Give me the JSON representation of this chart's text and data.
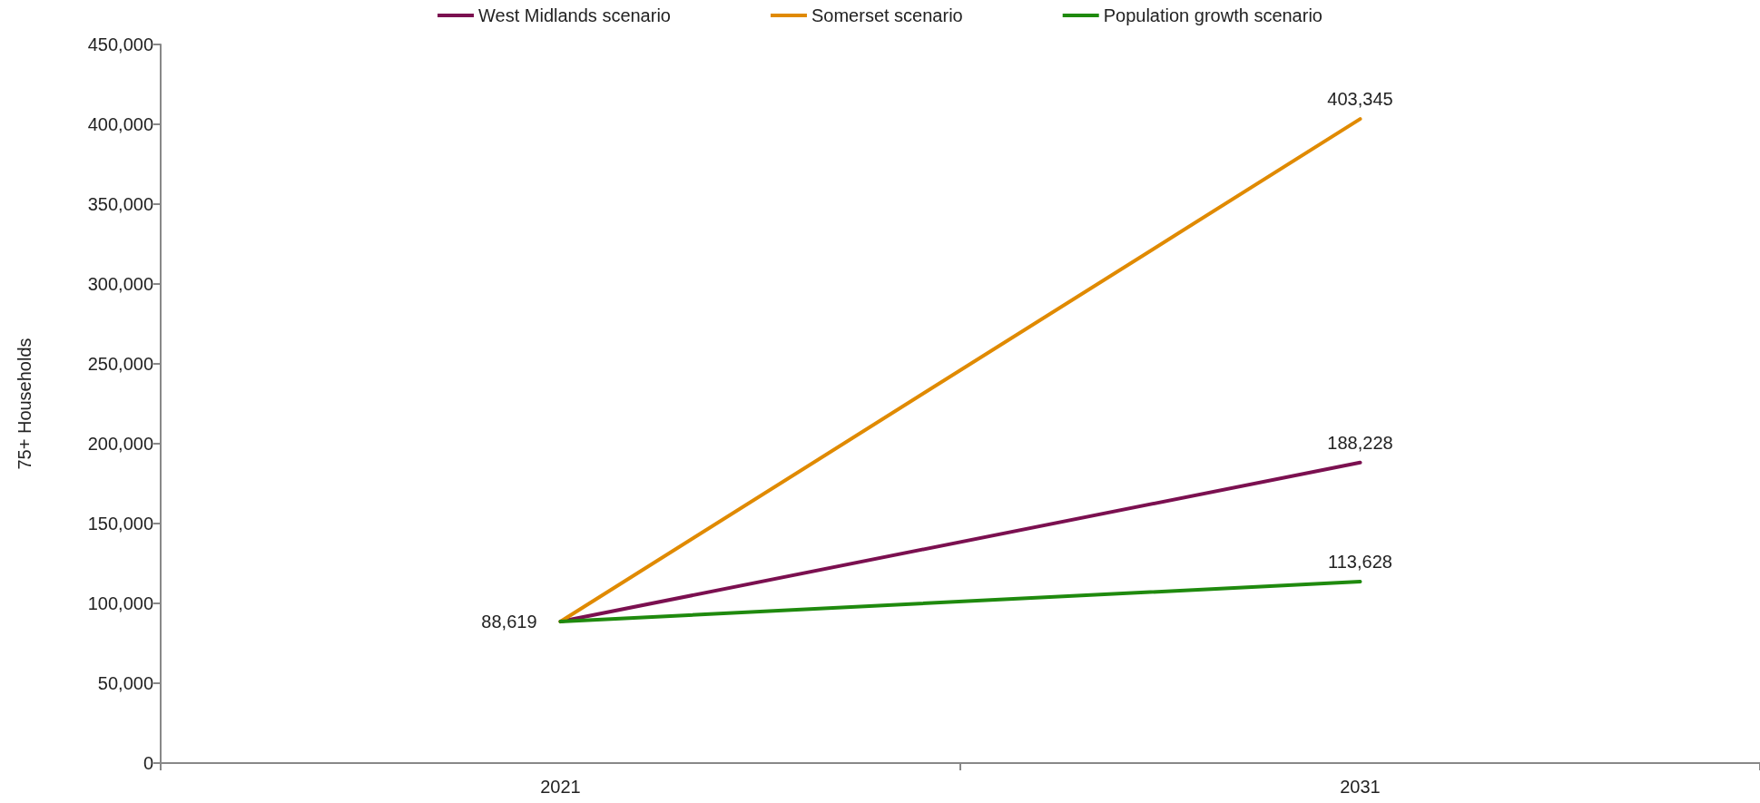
{
  "chart_data": {
    "type": "line",
    "ylabel": "75+ Households",
    "categories": [
      "2021",
      "2031"
    ],
    "series": [
      {
        "name": "West Midlands scenario",
        "color": "#7b1050",
        "values": [
          88619,
          188228
        ],
        "value_labels": [
          null,
          "188,228"
        ]
      },
      {
        "name": "Somerset scenario",
        "color": "#e08a00",
        "values": [
          88619,
          403345
        ],
        "value_labels": [
          null,
          "403,345"
        ]
      },
      {
        "name": "Population growth scenario",
        "color": "#1f8a0e",
        "values": [
          88619,
          113628
        ],
        "value_labels": [
          "88,619",
          "113,628"
        ]
      }
    ],
    "ylim": [
      0,
      450000
    ],
    "yticks": [
      0,
      {
        "value": 50000,
        "label": "50,000"
      },
      {
        "value": 100000,
        "label": "100,000"
      },
      {
        "value": 150000,
        "label": "150,000"
      },
      {
        "value": 200000,
        "label": "200,000"
      },
      {
        "value": 250000,
        "label": "250,000"
      },
      {
        "value": 300000,
        "label": "300,000"
      },
      {
        "value": 350000,
        "label": "350,000"
      },
      {
        "value": 400000,
        "label": "400,000"
      },
      {
        "value": 450000,
        "label": "450,000"
      }
    ],
    "grid": false,
    "legend": "top",
    "marker": "none",
    "line_style": "solid"
  }
}
